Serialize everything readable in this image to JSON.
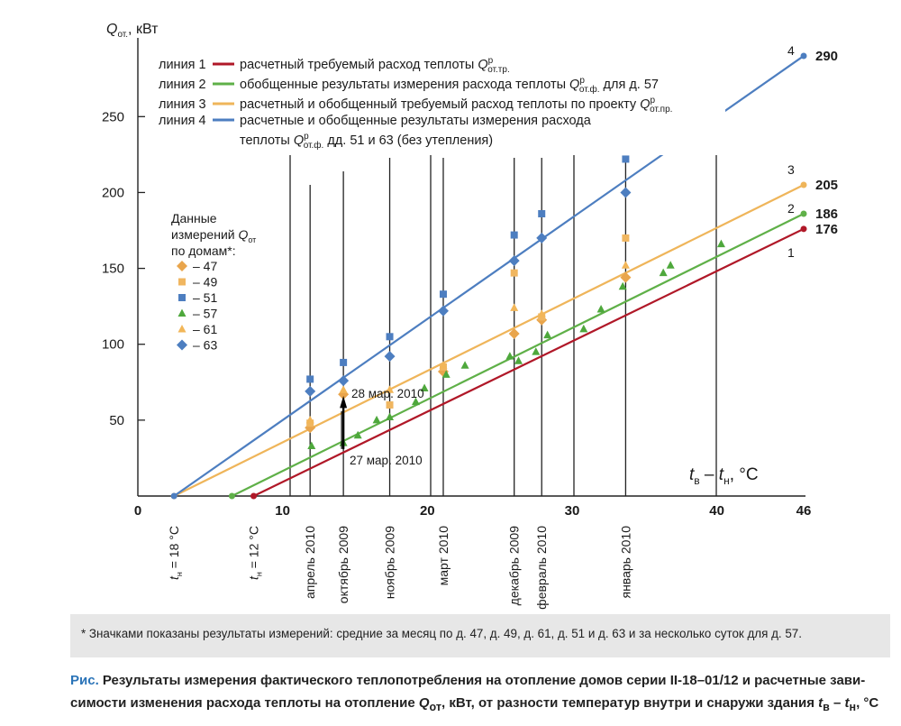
{
  "chart_data": {
    "type": "scatter",
    "ylabel_main": "Q",
    "ylabel_sub": "от.",
    "ylabel_unit": ", кВт",
    "xlabel_parts": [
      "t",
      "в",
      " – ",
      "t",
      "н",
      ", °C"
    ],
    "xlim": [
      0,
      46
    ],
    "ylim": [
      0,
      290
    ],
    "x_ticks": [
      0,
      10,
      20,
      30,
      40,
      46
    ],
    "y_ticks": [
      50,
      100,
      150,
      200,
      250
    ],
    "grid": false,
    "lines": [
      {
        "id": "1",
        "name": "линия 1",
        "color": "#b01828",
        "x": [
          8,
          46
        ],
        "y": [
          0,
          176
        ],
        "end_label": "176"
      },
      {
        "id": "2",
        "name": "линия 2",
        "color": "#5fb048",
        "x": [
          6.5,
          46
        ],
        "y": [
          0,
          186
        ],
        "end_label": "186"
      },
      {
        "id": "3",
        "name": "линия 3",
        "color": "#efb55a",
        "x": [
          2.5,
          46
        ],
        "y": [
          0,
          205
        ],
        "end_label": "205"
      },
      {
        "id": "4",
        "name": "линия 4",
        "color": "#4d7ec0",
        "x": [
          2.5,
          46
        ],
        "y": [
          0,
          290
        ],
        "end_label": "290"
      }
    ],
    "legend_lines": [
      {
        "label": "линия 1",
        "color": "#b01828",
        "parts": [
          "расчетный требуемый расход теплоты ",
          "Q",
          "р",
          "от.тр.",
          ""
        ]
      },
      {
        "label": "линия 2",
        "color": "#5fb048",
        "parts": [
          "обобщенные результаты измерения расхода теплоты ",
          "Q",
          "р",
          "от.ф.",
          " для д. 57"
        ]
      },
      {
        "label": "линия 3",
        "color": "#efb55a",
        "parts": [
          "расчетный и обобщенный требуемый расход теплоты по проекту ",
          "Q",
          "р",
          "от.пр.",
          ""
        ]
      },
      {
        "label": "линия 4",
        "color": "#4d7ec0",
        "parts": [
          "расчетные и обобщенные результаты измерения расхода",
          "",
          "",
          "",
          ""
        ]
      }
    ],
    "legend_line4_cont": [
      "теплоты ",
      "Q",
      "р",
      "от.ф.",
      " дд. 51 и 63 (без утепления)"
    ],
    "marker_legend_title": [
      "Данные",
      "измерений ",
      "Q",
      "от",
      "по домам*:"
    ],
    "series": [
      {
        "name": "– 47",
        "marker": "diamond",
        "color": "#e9a54c",
        "points": [
          [
            11.9,
            45
          ],
          [
            14.2,
            67
          ],
          [
            21.1,
            82
          ],
          [
            26,
            107
          ],
          [
            27.9,
            116
          ],
          [
            33.7,
            144
          ]
        ]
      },
      {
        "name": "– 49",
        "marker": "square",
        "color": "#f0b660",
        "points": [
          [
            11.9,
            48
          ],
          [
            17.4,
            60
          ],
          [
            21.1,
            85
          ],
          [
            26,
            147
          ],
          [
            27.9,
            118
          ],
          [
            33.7,
            170
          ]
        ]
      },
      {
        "name": "– 51",
        "marker": "square",
        "color": "#4d7ec0",
        "points": [
          [
            11.9,
            77
          ],
          [
            14.2,
            88
          ],
          [
            17.4,
            105
          ],
          [
            21.1,
            133
          ],
          [
            26,
            172
          ],
          [
            27.9,
            186
          ],
          [
            33.7,
            222
          ]
        ]
      },
      {
        "name": "– 57",
        "marker": "triangle",
        "color": "#4ea83c",
        "points": [
          [
            12,
            33
          ],
          [
            14.2,
            35
          ],
          [
            15.2,
            40
          ],
          [
            16.5,
            50
          ],
          [
            17.4,
            52
          ],
          [
            19.2,
            62
          ],
          [
            19.8,
            71
          ],
          [
            21.3,
            80
          ],
          [
            22.6,
            86
          ],
          [
            25.7,
            92
          ],
          [
            26.3,
            89
          ],
          [
            27.5,
            95
          ],
          [
            28.3,
            106
          ],
          [
            30.8,
            110
          ],
          [
            32,
            123
          ],
          [
            33.5,
            138
          ],
          [
            36.3,
            147
          ],
          [
            36.8,
            152
          ],
          [
            40.3,
            166
          ]
        ]
      },
      {
        "name": "– 61",
        "marker": "triangle",
        "color": "#f2b658",
        "points": [
          [
            11.9,
            50
          ],
          [
            14.2,
            70
          ],
          [
            17.4,
            70
          ],
          [
            21.1,
            86
          ],
          [
            26,
            124
          ],
          [
            27.9,
            120
          ],
          [
            33.7,
            152
          ]
        ]
      },
      {
        "name": "– 63",
        "marker": "diamond",
        "color": "#4d7ec0",
        "points": [
          [
            11.9,
            69
          ],
          [
            14.2,
            76
          ],
          [
            17.4,
            92
          ],
          [
            21.1,
            122
          ],
          [
            26,
            155
          ],
          [
            27.9,
            170
          ],
          [
            33.7,
            200
          ]
        ]
      }
    ],
    "months": [
      {
        "x": 11.9,
        "label": "апрель 2010"
      },
      {
        "x": 14.2,
        "label": "октябрь 2009"
      },
      {
        "x": 17.4,
        "label": "ноябрь 2009"
      },
      {
        "x": 21.1,
        "label": "март 2010"
      },
      {
        "x": 26,
        "label": "декабрь 2009"
      },
      {
        "x": 27.9,
        "label": "февраль 2010"
      },
      {
        "x": 33.7,
        "label": "январь 2010"
      }
    ],
    "temp_labels": [
      {
        "x": 2.5,
        "parts": [
          "t",
          "н",
          " = 18 °C"
        ]
      },
      {
        "x": 8,
        "parts": [
          "t",
          "н",
          " = 12 °C"
        ]
      }
    ],
    "annotations": [
      {
        "text": "28 мар. 2010",
        "x": 14.2,
        "y": 69
      },
      {
        "text": "27 мар. 2010",
        "x": 14.2,
        "y": 31
      }
    ]
  },
  "footnote": "* Значками показаны результаты измерений: средние за месяц по д. 47, д. 49, д. 61, д. 51 и д. 63 и за несколько суток для д. 57.",
  "caption": {
    "label": "Рис.",
    "line1": " Результаты измерения фактического теплопотребления на отопление домов серии II-18–01/12 и расчетные зави-",
    "line2a": "симости изменения расхода теплоты на отопление ",
    "line2_q": "Q",
    "line2_q_sub": "от",
    "line2b": ", кВт, от разности температур внутри и снаружи здания ",
    "line2_t1": "t",
    "line2_t1_sub": "в",
    "line2_dash": " – ",
    "line2_t2": "t",
    "line2_t2_sub": "н",
    "line2_end": ", °C"
  }
}
